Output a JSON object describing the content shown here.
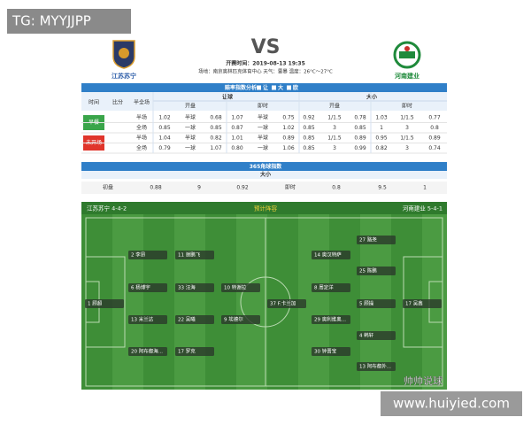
{
  "watermarks": {
    "top": "TG: MYYJJPP",
    "bottom": "www.huiyied.com",
    "weibo": "帅帅说球"
  },
  "match": {
    "home": "江苏苏宁",
    "away": "河南建业",
    "vs": "VS",
    "kickoff": "开赛时间：2019-08-13 19:35",
    "venue": "场地：南京奥林匹克体育中心 天气：雷暴 温度：26°C～27°C"
  },
  "odds": {
    "title": "赔率指数分析",
    "options": [
      "让",
      "大",
      "欧"
    ],
    "headers": [
      "时间",
      "比分",
      "半全场"
    ],
    "groups": [
      "让球",
      "大小"
    ],
    "subheaders": [
      "开盘",
      "即时",
      "开盘",
      "即时"
    ],
    "sections": [
      {
        "label": "早餐",
        "rows": [
          [
            "半场",
            "1.02",
            "半球",
            "0.68",
            "1.07",
            "半球",
            "0.75",
            "0.92",
            "1/1.5",
            "0.78",
            "1.03",
            "1/1.5",
            "0.77"
          ],
          [
            "全场",
            "0.85",
            "一球",
            "0.85",
            "0.87",
            "一球",
            "1.02",
            "0.85",
            "3",
            "0.85",
            "1",
            "3",
            "0.8"
          ]
        ]
      },
      {
        "label": "未开场",
        "rows": [
          [
            "半场",
            "1.04",
            "半球",
            "0.82",
            "1.01",
            "半球",
            "0.89",
            "0.85",
            "1/1.5",
            "0.89",
            "0.95",
            "1/1.5",
            "0.89"
          ],
          [
            "全场",
            "0.79",
            "一球",
            "1.07",
            "0.80",
            "一球",
            "1.06",
            "0.85",
            "3",
            "0.99",
            "0.82",
            "3",
            "0.74"
          ]
        ]
      }
    ]
  },
  "corners": {
    "title": "365角球指数",
    "group": "大小",
    "row": [
      "初盘",
      "0.88",
      "9",
      "0.92",
      "即时",
      "0.8",
      "9.5",
      "1"
    ]
  },
  "lineup": {
    "title": "预计阵容",
    "home": "江苏苏宁 4-4-2",
    "away": "河南建业 5-4-1",
    "home_players": [
      "1 顾超",
      "2 李昂",
      "6 杨博宇",
      "13 米兰达",
      "20 阿布都海...",
      "11 谢鹏飞",
      "33 汪海",
      "22 吴曦",
      "17 罗克",
      "10 特谢拉",
      "9 埃德尔"
    ],
    "away_players": [
      "27 路尧",
      "14 奥汉特萨",
      "25 陈鹏",
      "8 周定洋",
      "5 顾操",
      "37 F.卡兰加",
      "29 奥利维奥...",
      "4 韩轩",
      "30 钟晋宝",
      "13 阿布都外...",
      "17 吴鑫"
    ]
  }
}
